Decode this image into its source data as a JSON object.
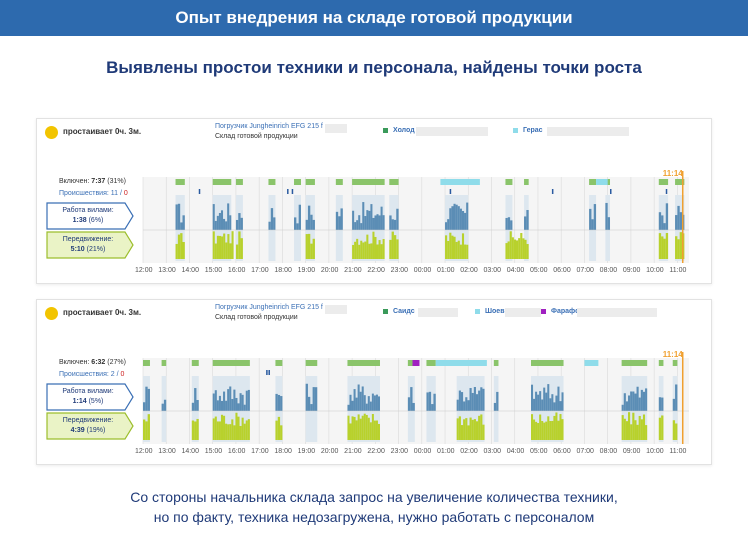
{
  "header": {
    "title": "Опыт внедрения на складе готовой продукции",
    "subtitle": "Выявлены простои техники и персонала, найдены точки роста"
  },
  "footer": {
    "line1": "Со стороны начальника склада запрос на увеличение количества техники,",
    "line2": "но по факту, техника недозагружена, нужно работать с персоналом"
  },
  "colors": {
    "header_bg": "#2d6aae",
    "title_text": "#1f3a78",
    "status_dot": "#f2c400",
    "green_on": "#8ac46a",
    "blue_forks": "#5b8db5",
    "lime_move": "#b8d12c",
    "orange_marker": "#f0a030",
    "cyan_operator": "#8fdcea",
    "purple_operator": "#a020c0"
  },
  "panels": [
    {
      "status": "простаивает 0ч. 3м.",
      "vehicle": "Погрузчик Jungheinrich EFG 215 f",
      "warehouse": "Склад готовой продукции",
      "operators": [
        {
          "name": "Холод",
          "color": "#3a9a5a"
        },
        {
          "name": "Герас",
          "color": "#8fdcea"
        }
      ],
      "time_marker": "11:14",
      "on_label": "Включен:",
      "on_value": "7:37",
      "on_pct": "(31%)",
      "incidents_label": "Происшествия:",
      "incidents_a": "11",
      "incidents_b": "0",
      "forks_label": "Работа вилами:",
      "forks_value": "1:38",
      "forks_pct": "(6%)",
      "move_label": "Передвижение:",
      "move_value": "5:10",
      "move_pct": "(21%)",
      "ticks": [
        "12:00",
        "13:00",
        "14:00",
        "15:00",
        "16:00",
        "17:00",
        "18:00",
        "19:00",
        "20:00",
        "21:00",
        "22:00",
        "23:00",
        "00:00",
        "01:00",
        "02:00",
        "03:00",
        "04:00",
        "05:00",
        "06:00",
        "07:00",
        "08:00",
        "09:00",
        "10:00",
        "11:00"
      ]
    },
    {
      "status": "простаивает 0ч. 3м.",
      "vehicle": "Погрузчик Jungheinrich EFG 215 f",
      "warehouse": "Склад готовой продукции",
      "operators": [
        {
          "name": "Саидс",
          "color": "#3a9a5a"
        },
        {
          "name": "Шоев",
          "color": "#8fdcea"
        },
        {
          "name": "Фарафс",
          "color": "#a020c0"
        }
      ],
      "time_marker": "11:14",
      "on_label": "Включен:",
      "on_value": "6:32",
      "on_pct": "(27%)",
      "incidents_label": "Происшествия:",
      "incidents_a": "2",
      "incidents_b": "0",
      "forks_label": "Работа вилами:",
      "forks_value": "1:14",
      "forks_pct": "(5%)",
      "move_label": "Передвижение:",
      "move_value": "4:39",
      "move_pct": "(19%)",
      "ticks": [
        "12:00",
        "13:00",
        "14:00",
        "15:00",
        "16:00",
        "17:00",
        "18:00",
        "19:00",
        "20:00",
        "21:00",
        "22:00",
        "23:00",
        "00:00",
        "01:00",
        "02:00",
        "03:00",
        "04:00",
        "05:00",
        "06:00",
        "07:00",
        "08:00",
        "09:00",
        "10:00",
        "11:00"
      ]
    }
  ],
  "chart_data": [
    {
      "type": "timeline",
      "hours_from_start_active": [
        [
          1.4,
          1.8
        ],
        [
          3.0,
          3.8
        ],
        [
          4.0,
          4.3
        ],
        [
          5.4,
          5.7
        ],
        [
          6.5,
          6.8
        ],
        [
          7.0,
          7.4
        ],
        [
          8.3,
          8.6
        ],
        [
          9.0,
          10.4
        ],
        [
          10.6,
          11.0
        ],
        [
          13.0,
          14.0
        ],
        [
          15.6,
          15.9
        ],
        [
          16.4,
          16.6
        ],
        [
          19.2,
          19.5
        ],
        [
          19.9,
          20.1
        ],
        [
          22.2,
          22.6
        ],
        [
          22.9,
          23.3
        ]
      ],
      "hours_from_start_move": [
        [
          1.4,
          1.8
        ],
        [
          3.0,
          3.9
        ],
        [
          4.0,
          4.3
        ],
        [
          7.0,
          7.4
        ],
        [
          9.0,
          10.4
        ],
        [
          10.6,
          11.0
        ],
        [
          13.0,
          14.0
        ],
        [
          15.6,
          16.6
        ],
        [
          22.2,
          22.6
        ],
        [
          22.9,
          23.3
        ]
      ],
      "end_hour": 23.23
    },
    {
      "type": "timeline",
      "hours_from_start_active": [
        [
          0.0,
          0.3
        ],
        [
          0.8,
          1.0
        ],
        [
          2.1,
          2.4
        ],
        [
          3.0,
          4.6
        ],
        [
          5.7,
          6.0
        ],
        [
          7.0,
          7.5
        ],
        [
          8.8,
          10.2
        ],
        [
          11.4,
          11.7
        ],
        [
          12.2,
          12.6
        ],
        [
          13.5,
          14.7
        ],
        [
          15.1,
          15.3
        ],
        [
          16.7,
          18.1
        ],
        [
          20.6,
          21.7
        ],
        [
          22.2,
          22.4
        ],
        [
          22.8,
          23.0
        ]
      ],
      "hours_from_start_move": [
        [
          0.0,
          0.3
        ],
        [
          2.1,
          2.4
        ],
        [
          3.0,
          4.6
        ],
        [
          5.7,
          6.0
        ],
        [
          8.8,
          10.2
        ],
        [
          13.5,
          14.7
        ],
        [
          16.7,
          18.1
        ],
        [
          20.6,
          21.7
        ],
        [
          22.2,
          22.4
        ],
        [
          22.8,
          23.0
        ]
      ],
      "end_hour": 23.23
    }
  ]
}
